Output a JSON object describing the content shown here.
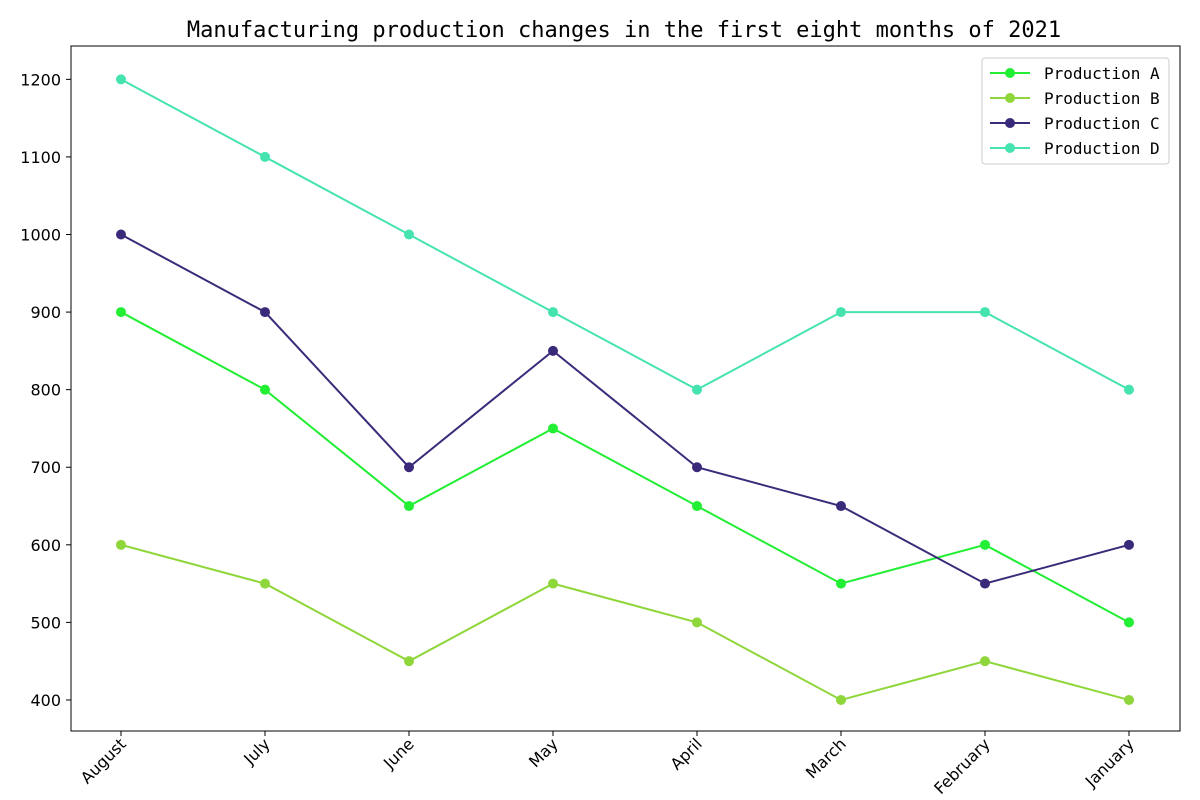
{
  "chart_data": {
    "type": "line",
    "title": "Manufacturing production changes in the first eight months of 2021",
    "xlabel": "",
    "ylabel": "",
    "categories": [
      "August",
      "July",
      "June",
      "May",
      "April",
      "March",
      "February",
      "January"
    ],
    "yticks": [
      400,
      500,
      600,
      700,
      800,
      900,
      1000,
      1100,
      1200
    ],
    "ylim": [
      360,
      1243
    ],
    "grid": false,
    "legend_position": "top-right",
    "series": [
      {
        "name": "Production A",
        "color": "#22ee33",
        "values": [
          900,
          800,
          650,
          750,
          650,
          550,
          600,
          500
        ]
      },
      {
        "name": "Production B",
        "color": "#8fd63a",
        "values": [
          600,
          550,
          450,
          550,
          500,
          400,
          450,
          400
        ]
      },
      {
        "name": "Production C",
        "color": "#3b2a7a",
        "values": [
          1000,
          900,
          700,
          850,
          700,
          650,
          550,
          600
        ]
      },
      {
        "name": "Production D",
        "color": "#45e3b0",
        "values": [
          1200,
          1100,
          1000,
          900,
          800,
          900,
          900,
          800
        ]
      }
    ]
  }
}
